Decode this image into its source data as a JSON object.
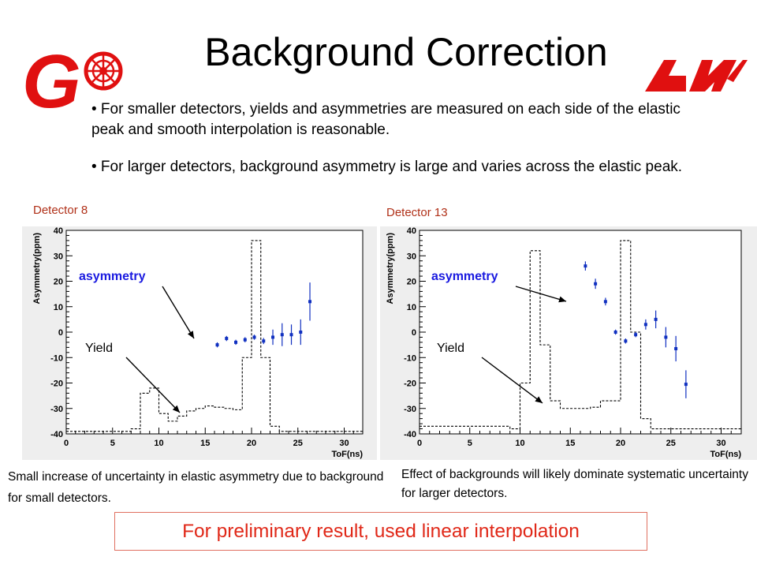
{
  "slide": {
    "title": "Background Correction",
    "bullets": [
      "• For smaller detectors, yields and asymmetries are measured on each side of the elastic peak and smooth interpolation is reasonable.",
      "• For larger detectors, background asymmetry is large and varies across the elastic peak."
    ],
    "caption_left": "Small increase of uncertainty in elastic asymmetry due to background for small detectors.",
    "caption_right": "Effect of backgrounds will likely dominate systematic uncertainty for larger detectors.",
    "conclusion": "For preliminary result, used linear interpolation",
    "logo_left_letter": "G",
    "colors": {
      "title": "#000000",
      "logo_red": "#e01010",
      "conclusion": "#e02818",
      "detector_label": "#b03018",
      "points": "#1030c0"
    }
  },
  "chart_data": [
    {
      "type": "scatter",
      "title": "Detector 8",
      "xlabel": "ToF(ns)",
      "ylabel": "Asymmetry(ppm)",
      "xlim": [
        0,
        32
      ],
      "ylim": [
        -40,
        40
      ],
      "xticks": [
        0,
        5,
        10,
        15,
        20,
        25,
        30
      ],
      "yticks": [
        -40,
        -30,
        -20,
        -10,
        0,
        10,
        20,
        30,
        40
      ],
      "annotations": [
        "asymmetry",
        "Yield"
      ],
      "series": [
        {
          "name": "asymmetry",
          "style": "points",
          "x": [
            16.3,
            17.3,
            18.3,
            19.3,
            20.3,
            21.3,
            22.3,
            23.3,
            24.3,
            25.3,
            26.3
          ],
          "y": [
            -5,
            -2.5,
            -4,
            -3,
            -2,
            -3.5,
            -2,
            -1,
            -1,
            0,
            12
          ],
          "err": [
            1,
            1,
            1,
            1,
            1,
            1.2,
            3,
            4.5,
            4,
            5,
            7.5
          ]
        },
        {
          "name": "Yield",
          "style": "step-dashed",
          "x": [
            0,
            7,
            8,
            9,
            10,
            11,
            12,
            13,
            14,
            15,
            16,
            17,
            18,
            19,
            20,
            21,
            22,
            23,
            32
          ],
          "y": [
            -39,
            -38,
            -24,
            -22,
            -32,
            -35,
            -33,
            -31,
            -30,
            -29,
            -29.5,
            -30,
            -30.5,
            -10,
            36,
            -10,
            -37,
            -39,
            -39
          ]
        }
      ]
    },
    {
      "type": "scatter",
      "title": "Detector 13",
      "xlabel": "ToF(ns)",
      "ylabel": "Asymmetry(ppm)",
      "xlim": [
        0,
        32
      ],
      "ylim": [
        -40,
        40
      ],
      "xticks": [
        0,
        5,
        10,
        15,
        20,
        25,
        30
      ],
      "yticks": [
        -40,
        -30,
        -20,
        -10,
        0,
        10,
        20,
        30,
        40
      ],
      "annotations": [
        "asymmetry",
        "Yield"
      ],
      "series": [
        {
          "name": "asymmetry",
          "style": "points",
          "x": [
            16.5,
            17.5,
            18.5,
            19.5,
            20.5,
            21.5,
            22.5,
            23.5,
            24.5,
            25.5,
            26.5
          ],
          "y": [
            26,
            19,
            12,
            0,
            -3.5,
            -1,
            3,
            5,
            -2,
            -6.5,
            -20.5
          ],
          "err": [
            1.8,
            2,
            1.5,
            1,
            1,
            1,
            2,
            3.5,
            4,
            5,
            5.5
          ]
        },
        {
          "name": "Yield",
          "style": "step-dashed",
          "x": [
            0,
            9,
            10,
            11,
            12,
            13,
            14,
            17,
            18,
            19,
            20,
            21,
            22,
            23,
            32
          ],
          "y": [
            -37,
            -38,
            -20,
            32,
            -5,
            -27,
            -30,
            -29.5,
            -27,
            -27,
            36,
            0,
            -34,
            -38,
            -39
          ]
        }
      ]
    }
  ]
}
